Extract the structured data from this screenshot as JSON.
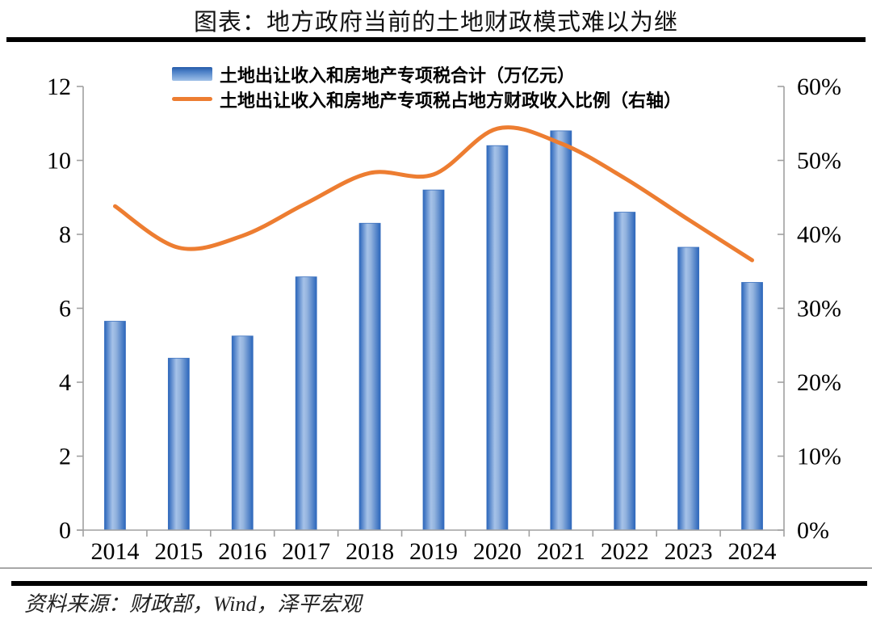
{
  "title": "图表：地方政府当前的土地财政模式难以为继",
  "source": "资料来源：财政部，Wind，泽平宏观",
  "legend": {
    "bar_label": "土地出让收入和房地产专项税合计（万亿元）",
    "line_label": "土地出让收入和房地产专项税占地方财政收入比例（右轴）"
  },
  "colors": {
    "bar_edge": "#2B66BB",
    "bar_light": "#A6C2E8",
    "line": "#ED7D31",
    "axis": "#A0A0A0",
    "text": "#000000"
  },
  "chart_data": {
    "type": "bar+line",
    "categories": [
      "2014",
      "2015",
      "2016",
      "2017",
      "2018",
      "2019",
      "2020",
      "2021",
      "2022",
      "2023",
      "2024"
    ],
    "series": [
      {
        "name": "土地出让收入和房地产专项税合计（万亿元）",
        "type": "bar",
        "axis": "left",
        "values": [
          5.65,
          4.65,
          5.25,
          6.85,
          8.3,
          9.2,
          10.4,
          10.8,
          8.6,
          7.65,
          6.7
        ]
      },
      {
        "name": "土地出让收入和房地产专项税占地方财政收入比例（右轴）",
        "type": "line",
        "axis": "right",
        "values_pct": [
          43.8,
          38.2,
          39.8,
          44.2,
          48.3,
          48.1,
          54.3,
          52.3,
          47.6,
          42.0,
          36.5
        ]
      }
    ],
    "left_axis": {
      "min": 0,
      "max": 12,
      "tick_labels": [
        "0",
        "2",
        "4",
        "6",
        "8",
        "10",
        "12"
      ]
    },
    "right_axis": {
      "min": 0,
      "max": 60,
      "tick_labels": [
        "0%",
        "10%",
        "20%",
        "30%",
        "40%",
        "50%",
        "60%"
      ]
    },
    "legend_position": "top",
    "grid": false,
    "line_smooth": true
  }
}
